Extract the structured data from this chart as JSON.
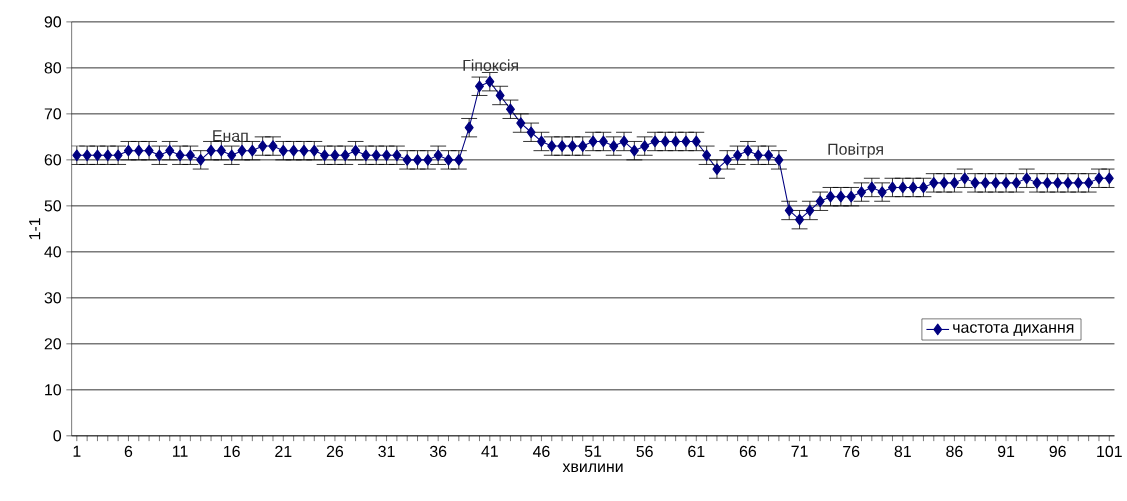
{
  "chart_data": {
    "type": "line",
    "xlabel": "хвилини",
    "ylabel": "1-1",
    "x": [
      1,
      2,
      3,
      4,
      5,
      6,
      7,
      8,
      9,
      10,
      11,
      12,
      13,
      14,
      15,
      16,
      17,
      18,
      19,
      20,
      21,
      22,
      23,
      24,
      25,
      26,
      27,
      28,
      29,
      30,
      31,
      32,
      33,
      34,
      35,
      36,
      37,
      38,
      39,
      40,
      41,
      42,
      43,
      44,
      45,
      46,
      47,
      48,
      49,
      50,
      51,
      52,
      53,
      54,
      55,
      56,
      57,
      58,
      59,
      60,
      61,
      62,
      63,
      64,
      65,
      66,
      67,
      68,
      69,
      70,
      71,
      72,
      73,
      74,
      75,
      76,
      77,
      78,
      79,
      80,
      81,
      82,
      83,
      84,
      85,
      86,
      87,
      88,
      89,
      90,
      91,
      92,
      93,
      94,
      95,
      96,
      97,
      98,
      99,
      100,
      101
    ],
    "series": [
      {
        "name": "частота дихання",
        "color": "#000080",
        "values": [
          61,
          61,
          61,
          61,
          61,
          62,
          62,
          62,
          61,
          62,
          61,
          61,
          60,
          62,
          62,
          61,
          62,
          62,
          63,
          63,
          62,
          62,
          62,
          62,
          61,
          61,
          61,
          62,
          61,
          61,
          61,
          61,
          60,
          60,
          60,
          61,
          60,
          60,
          67,
          76,
          77,
          74,
          71,
          68,
          66,
          64,
          63,
          63,
          63,
          63,
          64,
          64,
          63,
          64,
          62,
          63,
          64,
          64,
          64,
          64,
          64,
          61,
          58,
          60,
          61,
          62,
          61,
          61,
          60,
          49,
          47,
          49,
          51,
          52,
          52,
          52,
          53,
          54,
          53,
          54,
          54,
          54,
          54,
          55,
          55,
          55,
          56,
          55,
          55,
          55,
          55,
          55,
          56,
          55,
          55,
          55,
          55,
          55,
          55,
          56,
          56
        ],
        "errors": [
          2,
          2,
          2,
          2,
          2,
          2,
          2,
          2,
          2,
          2,
          2,
          2,
          2,
          2,
          2,
          2,
          2,
          2,
          2,
          2,
          2,
          2,
          2,
          2,
          2,
          2,
          2,
          2,
          2,
          2,
          2,
          2,
          2,
          2,
          2,
          2,
          2,
          2,
          2,
          2,
          2,
          2,
          2,
          2,
          2,
          2,
          2,
          2,
          2,
          2,
          2,
          2,
          2,
          2,
          2,
          2,
          2,
          2,
          2,
          2,
          2,
          2,
          2,
          2,
          2,
          2,
          2,
          2,
          2,
          2,
          2,
          2,
          2,
          2,
          2,
          2,
          2,
          2,
          2,
          2,
          2,
          2,
          2,
          2,
          2,
          2,
          2,
          2,
          2,
          2,
          2,
          2,
          2,
          2,
          2,
          2,
          2,
          2,
          2,
          2,
          2
        ]
      }
    ],
    "xlim": [
      0.5,
      101.5
    ],
    "xticks": [
      1,
      {
        "value": 2,
        "label": null
      },
      {
        "value": 3,
        "label": null
      },
      {
        "value": 4,
        "label": null
      },
      {
        "value": 5,
        "label": null
      },
      6,
      {
        "value": 7,
        "label": null
      },
      {
        "value": 8,
        "label": null
      },
      {
        "value": 9,
        "label": null
      },
      {
        "value": 10,
        "label": null
      },
      11,
      {
        "value": 12,
        "label": null
      },
      {
        "value": 13,
        "label": null
      },
      {
        "value": 14,
        "label": null
      },
      {
        "value": 15,
        "label": null
      },
      16,
      {
        "value": 17,
        "label": null
      },
      {
        "value": 18,
        "label": null
      },
      {
        "value": 19,
        "label": null
      },
      {
        "value": 20,
        "label": null
      },
      21,
      {
        "value": 22,
        "label": null
      },
      {
        "value": 23,
        "label": null
      },
      {
        "value": 24,
        "label": null
      },
      {
        "value": 25,
        "label": null
      },
      26,
      {
        "value": 27,
        "label": null
      },
      {
        "value": 28,
        "label": null
      },
      {
        "value": 29,
        "label": null
      },
      {
        "value": 30,
        "label": null
      },
      31,
      {
        "value": 32,
        "label": null
      },
      {
        "value": 33,
        "label": null
      },
      {
        "value": 34,
        "label": null
      },
      {
        "value": 35,
        "label": null
      },
      36,
      {
        "value": 37,
        "label": null
      },
      {
        "value": 38,
        "label": null
      },
      {
        "value": 39,
        "label": null
      },
      {
        "value": 40,
        "label": null
      },
      41,
      {
        "value": 42,
        "label": null
      },
      {
        "value": 43,
        "label": null
      },
      {
        "value": 44,
        "label": null
      },
      {
        "value": 45,
        "label": null
      },
      46,
      {
        "value": 47,
        "label": null
      },
      {
        "value": 48,
        "label": null
      },
      {
        "value": 49,
        "label": null
      },
      {
        "value": 50,
        "label": null
      },
      51,
      {
        "value": 52,
        "label": null
      },
      {
        "value": 53,
        "label": null
      },
      {
        "value": 54,
        "label": null
      },
      {
        "value": 55,
        "label": null
      },
      56,
      {
        "value": 57,
        "label": null
      },
      {
        "value": 58,
        "label": null
      },
      {
        "value": 59,
        "label": null
      },
      {
        "value": 60,
        "label": null
      },
      61,
      {
        "value": 62,
        "label": null
      },
      {
        "value": 63,
        "label": null
      },
      {
        "value": 64,
        "label": null
      },
      {
        "value": 65,
        "label": null
      },
      66,
      {
        "value": 67,
        "label": null
      },
      {
        "value": 68,
        "label": null
      },
      {
        "value": 69,
        "label": null
      },
      {
        "value": 70,
        "label": null
      },
      71,
      {
        "value": 72,
        "label": null
      },
      {
        "value": 73,
        "label": null
      },
      {
        "value": 74,
        "label": null
      },
      {
        "value": 75,
        "label": null
      },
      76,
      {
        "value": 77,
        "label": null
      },
      {
        "value": 78,
        "label": null
      },
      {
        "value": 79,
        "label": null
      },
      {
        "value": 80,
        "label": null
      },
      81,
      {
        "value": 82,
        "label": null
      },
      {
        "value": 83,
        "label": null
      },
      {
        "value": 84,
        "label": null
      },
      {
        "value": 85,
        "label": null
      },
      86,
      {
        "value": 87,
        "label": null
      },
      {
        "value": 88,
        "label": null
      },
      {
        "value": 89,
        "label": null
      },
      {
        "value": 90,
        "label": null
      },
      91,
      {
        "value": 92,
        "label": null
      },
      {
        "value": 93,
        "label": null
      },
      {
        "value": 94,
        "label": null
      },
      {
        "value": 95,
        "label": null
      },
      96,
      {
        "value": 97,
        "label": null
      },
      {
        "value": 98,
        "label": null
      },
      {
        "value": 99,
        "label": null
      },
      {
        "value": 100,
        "label": null
      },
      101
    ],
    "ylim": [
      0,
      90
    ],
    "yticks": [
      0,
      10,
      20,
      30,
      40,
      50,
      60,
      70,
      80,
      90
    ],
    "grid": "y",
    "legend": "bottom right",
    "marker": "diamond",
    "line_style": "solid",
    "annotations": [
      "Енап",
      "Гіпоксія",
      "Повітря"
    ]
  }
}
